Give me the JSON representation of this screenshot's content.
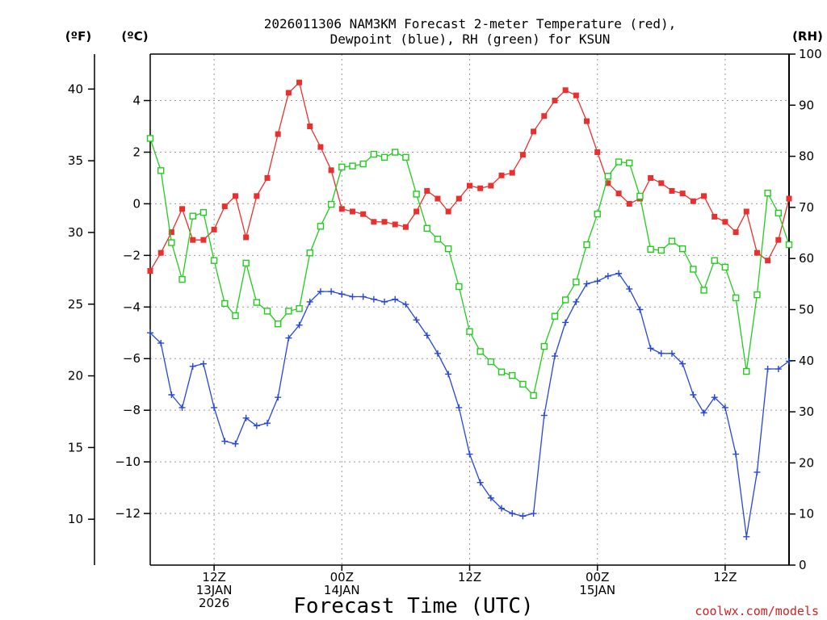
{
  "chart_data": {
    "type": "line",
    "title_lines": [
      "2026011306 NAM3KM Forecast 2-meter Temperature (red),",
      "Dewpoint (blue), RH (green) for KSUN"
    ],
    "xlabel": "Forecast Time (UTC)",
    "credit": "coolwx.com/models",
    "units": {
      "fahrenheit": "(ºF)",
      "celsius": "(ºC)",
      "rh": "(RH)"
    },
    "x_unit": "forecast hour",
    "xlim": [
      0,
      60
    ],
    "x_ticks": [
      {
        "hour": 6,
        "lines": [
          "12Z",
          "13JAN",
          "2026"
        ]
      },
      {
        "hour": 18,
        "lines": [
          "00Z",
          "14JAN"
        ]
      },
      {
        "hour": 30,
        "lines": [
          "12Z"
        ]
      },
      {
        "hour": 42,
        "lines": [
          "00Z",
          "15JAN"
        ]
      },
      {
        "hour": 54,
        "lines": [
          "12Z"
        ]
      }
    ],
    "y_celsius": {
      "ylim": [
        -14,
        5.8
      ],
      "ticks": [
        4,
        2,
        0,
        -2,
        -4,
        -6,
        -8,
        -10,
        -12
      ],
      "tick_labels": [
        "4",
        "2",
        "0",
        "−2",
        "−4",
        "−6",
        "−8",
        "−10",
        "−12"
      ]
    },
    "y_fahrenheit": {
      "ticks": [
        40,
        35,
        30,
        25,
        20,
        15,
        10
      ],
      "tick_labels": [
        "40",
        "35",
        "30",
        "25",
        "20",
        "15",
        "10"
      ]
    },
    "y_rh": {
      "ylim": [
        0,
        100
      ],
      "ticks": [
        100,
        90,
        80,
        70,
        60,
        50,
        40,
        30,
        20,
        10,
        0
      ],
      "tick_labels": [
        "100",
        "90",
        "80",
        "70",
        "60",
        "50",
        "40",
        "30",
        "20",
        "10",
        "0"
      ]
    },
    "grid": true,
    "series": [
      {
        "name": "2-meter Temperature",
        "unit": "C",
        "axis": "celsius",
        "color": "#e8312f",
        "marker": "filled-square",
        "x": [
          0,
          1,
          2,
          3,
          4,
          5,
          6,
          7,
          8,
          9,
          10,
          11,
          12,
          13,
          14,
          15,
          16,
          17,
          18,
          19,
          20,
          21,
          22,
          23,
          24,
          25,
          26,
          27,
          28,
          29,
          30,
          31,
          32,
          33,
          34,
          35,
          36,
          37,
          38,
          39,
          40,
          41,
          42,
          43,
          44,
          45,
          46,
          47,
          48,
          49,
          50,
          51,
          52,
          53,
          54,
          55,
          56,
          57,
          58,
          59,
          60
        ],
        "values": [
          -2.6,
          -1.9,
          -1.1,
          -0.2,
          -1.4,
          -1.4,
          -1.0,
          -0.1,
          0.3,
          -1.3,
          0.3,
          1.0,
          2.7,
          4.3,
          4.7,
          3.0,
          2.2,
          1.3,
          -0.2,
          -0.3,
          -0.4,
          -0.7,
          -0.7,
          -0.8,
          -0.9,
          -0.3,
          0.5,
          0.2,
          -0.3,
          0.2,
          0.7,
          0.6,
          0.7,
          1.1,
          1.2,
          1.9,
          2.8,
          3.4,
          4.0,
          4.4,
          4.2,
          3.2,
          2.0,
          0.8,
          0.4,
          0.0,
          0.2,
          1.0,
          0.8,
          0.5,
          0.4,
          0.1,
          0.3,
          -0.5,
          -0.7,
          -1.1,
          -0.3,
          -1.9,
          -2.2,
          -1.4,
          0.2
        ]
      },
      {
        "name": "Dewpoint",
        "unit": "C",
        "axis": "celsius",
        "color": "#2646d8",
        "marker": "plus",
        "x": [
          0,
          1,
          2,
          3,
          4,
          5,
          6,
          7,
          8,
          9,
          10,
          11,
          12,
          13,
          14,
          15,
          16,
          17,
          18,
          19,
          20,
          21,
          22,
          23,
          24,
          25,
          26,
          27,
          28,
          29,
          30,
          31,
          32,
          33,
          34,
          35,
          36,
          37,
          38,
          39,
          40,
          41,
          42,
          43,
          44,
          45,
          46,
          47,
          48,
          49,
          50,
          51,
          52,
          53,
          54,
          55,
          56,
          57,
          58,
          59,
          60
        ],
        "values": [
          -5.0,
          -5.4,
          -7.4,
          -7.9,
          -6.3,
          -6.2,
          -7.9,
          -9.2,
          -9.3,
          -8.3,
          -8.6,
          -8.5,
          -7.5,
          -5.2,
          -4.7,
          -3.8,
          -3.4,
          -3.4,
          -3.5,
          -3.6,
          -3.6,
          -3.7,
          -3.8,
          -3.7,
          -3.9,
          -4.5,
          -5.1,
          -5.8,
          -6.6,
          -7.9,
          -9.7,
          -10.8,
          -11.4,
          -11.8,
          -12.0,
          -12.1,
          -12.0,
          -8.2,
          -5.9,
          -4.6,
          -3.8,
          -3.1,
          -3.0,
          -2.8,
          -2.7,
          -3.3,
          -4.1,
          -5.6,
          -5.8,
          -5.8,
          -6.2,
          -7.4,
          -8.1,
          -7.5,
          -7.9,
          -9.7,
          -12.9,
          -10.4,
          -6.4,
          -6.4,
          -6.1
        ]
      },
      {
        "name": "RH",
        "unit": "%",
        "axis": "rh",
        "color": "#22cc1e",
        "marker": "open-square",
        "x": [
          0,
          1,
          2,
          3,
          4,
          5,
          6,
          7,
          8,
          9,
          10,
          11,
          12,
          13,
          14,
          15,
          16,
          17,
          18,
          19,
          20,
          21,
          22,
          23,
          24,
          25,
          26,
          27,
          28,
          29,
          30,
          31,
          32,
          33,
          34,
          35,
          36,
          37,
          38,
          39,
          40,
          41,
          42,
          43,
          44,
          45,
          46,
          47,
          48,
          49,
          50,
          51,
          52,
          53,
          54,
          55,
          56,
          57,
          58,
          59,
          60
        ],
        "values": [
          83.5,
          77.2,
          63.1,
          55.9,
          68.3,
          69.0,
          59.6,
          51.2,
          48.8,
          59.1,
          51.4,
          49.7,
          47.2,
          49.7,
          50.2,
          61.1,
          66.3,
          70.6,
          77.9,
          78.1,
          78.5,
          80.4,
          79.8,
          80.8,
          79.8,
          72.6,
          65.9,
          63.8,
          61.9,
          54.5,
          45.7,
          41.8,
          39.8,
          37.8,
          37.1,
          35.4,
          33.2,
          42.8,
          48.7,
          51.9,
          55.4,
          62.7,
          68.7,
          76.1,
          78.9,
          78.7,
          72.2,
          61.8,
          61.6,
          63.4,
          61.9,
          57.9,
          53.8,
          59.6,
          58.3,
          52.3,
          37.9,
          52.9,
          72.8,
          68.9,
          62.7
        ]
      }
    ]
  }
}
